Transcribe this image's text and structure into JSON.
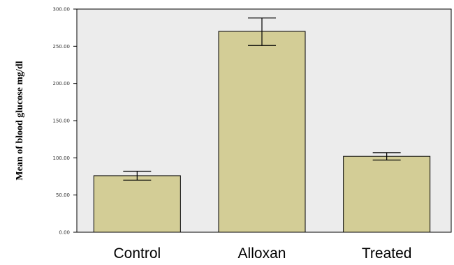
{
  "chart_data": {
    "type": "bar",
    "title": "",
    "xlabel": "",
    "ylabel": "Mean of blood glucose mg/dl",
    "categories": [
      "Control",
      "Alloxan",
      "Treated"
    ],
    "values": [
      76,
      270,
      102
    ],
    "error_low": [
      70,
      251,
      97
    ],
    "error_high": [
      82,
      288,
      107
    ],
    "ylim": [
      0,
      300
    ],
    "yticks": [
      0,
      50,
      100,
      150,
      200,
      250,
      300
    ],
    "ytick_labels": [
      "0.00",
      "50.00",
      "100.00",
      "150.00",
      "200.00",
      "250.00",
      "300.00"
    ],
    "grid": false,
    "legend": "none",
    "bar_color": "#d3cd96",
    "plot_background": "#ececec"
  }
}
